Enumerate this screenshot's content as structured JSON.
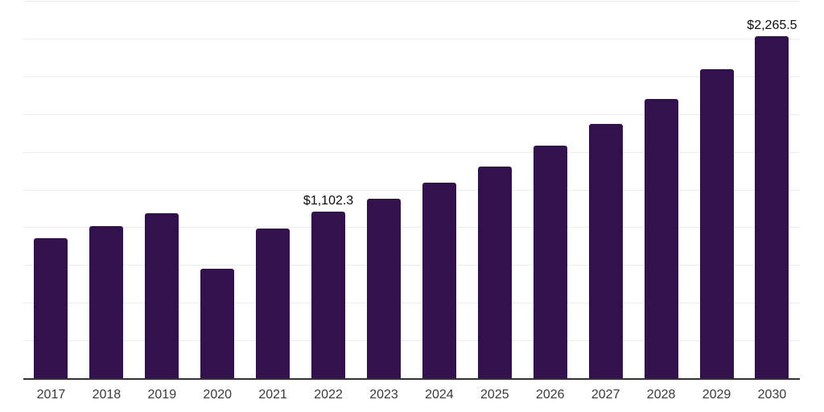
{
  "chart_data": {
    "type": "bar",
    "title": "",
    "xlabel": "",
    "ylabel": "",
    "categories": [
      "2017",
      "2018",
      "2019",
      "2020",
      "2021",
      "2022",
      "2023",
      "2024",
      "2025",
      "2026",
      "2027",
      "2028",
      "2029",
      "2030"
    ],
    "values": [
      928.3,
      1008.2,
      1093.4,
      724.3,
      989.0,
      1102.3,
      1190.4,
      1294.2,
      1400.7,
      1539.2,
      1683.0,
      1848.1,
      2045.2,
      2265.5
    ],
    "data_labels": [
      null,
      null,
      null,
      null,
      null,
      "$1,102.3",
      null,
      null,
      null,
      null,
      null,
      null,
      null,
      "$2,265.5"
    ],
    "ylim": [
      0,
      2500
    ],
    "gridline_interval": 250,
    "grid": "horizontal",
    "y_axis_tick_labels": "none",
    "legend": "none"
  },
  "colors": {
    "bar": "#33114C",
    "gridline": "#ECECEC",
    "axis_line": "#333333",
    "tick_label": "#3A3A3A",
    "data_label": "#0D0D0D",
    "background": "#FFFFFF"
  }
}
